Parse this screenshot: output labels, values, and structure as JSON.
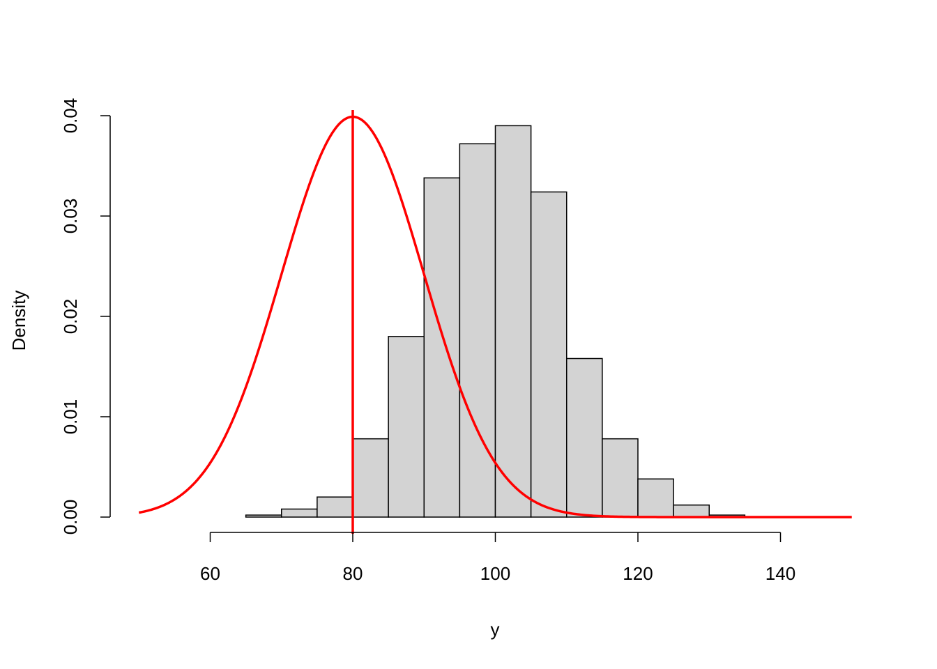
{
  "chart_data": {
    "type": "bar",
    "title": "",
    "xlabel": "y",
    "ylabel": "Density",
    "grid": false,
    "xlim": [
      50,
      150
    ],
    "ylim": [
      0,
      0.04
    ],
    "x_ticks": [
      "60",
      "80",
      "100",
      "120",
      "140"
    ],
    "x_tick_values": [
      60,
      80,
      100,
      120,
      140
    ],
    "y_ticks": [
      "0.00",
      "0.01",
      "0.02",
      "0.03",
      "0.04"
    ],
    "y_tick_values": [
      0,
      0.01,
      0.02,
      0.03,
      0.04
    ],
    "bins": [
      {
        "from": 65,
        "to": 70,
        "density": 0.0002
      },
      {
        "from": 70,
        "to": 75,
        "density": 0.0008
      },
      {
        "from": 75,
        "to": 80,
        "density": 0.002
      },
      {
        "from": 80,
        "to": 85,
        "density": 0.0078
      },
      {
        "from": 85,
        "to": 90,
        "density": 0.018
      },
      {
        "from": 90,
        "to": 95,
        "density": 0.0338
      },
      {
        "from": 95,
        "to": 100,
        "density": 0.0372
      },
      {
        "from": 100,
        "to": 105,
        "density": 0.039
      },
      {
        "from": 105,
        "to": 110,
        "density": 0.0324
      },
      {
        "from": 110,
        "to": 115,
        "density": 0.0158
      },
      {
        "from": 115,
        "to": 120,
        "density": 0.0078
      },
      {
        "from": 120,
        "to": 125,
        "density": 0.0038
      },
      {
        "from": 125,
        "to": 130,
        "density": 0.0012
      },
      {
        "from": 130,
        "to": 135,
        "density": 0.0002
      }
    ],
    "bar_fill": "#d3d3d3",
    "bar_stroke": "#000000",
    "overlay_curve": {
      "type": "normal-density",
      "mean": 80,
      "sd": 10,
      "x_range": [
        50,
        150
      ],
      "color": "#ff0000"
    },
    "vertical_line": {
      "x": 80,
      "color": "#ff0000"
    }
  }
}
